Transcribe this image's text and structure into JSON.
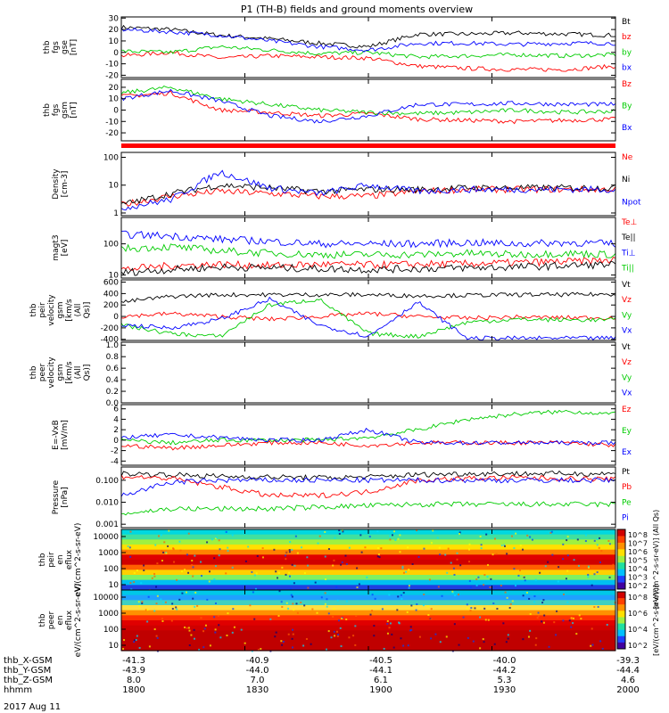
{
  "title": "P1 (TH-B) fields and ground moments overview",
  "date": "2017 Aug 11",
  "orbit_rows": [
    {
      "label": "thb_X-GSM",
      "values": [
        "-41.3",
        "-40.9",
        "-40.5",
        "-40.0",
        "-39.3"
      ]
    },
    {
      "label": "thb_Y-GSM",
      "values": [
        "-43.9",
        "-44.0",
        "-44.1",
        "-44.2",
        "-44.4"
      ]
    },
    {
      "label": "thb_Z-GSM",
      "values": [
        "8.0",
        "7.0",
        "6.1",
        "5.3",
        "4.6"
      ]
    },
    {
      "label": "hhmm",
      "values": [
        "1800",
        "1830",
        "1900",
        "1930",
        "2000"
      ]
    }
  ],
  "colorbar": {
    "label_top": "[eV/(cm^2-s-sr-eV)] (All Qs)",
    "label_bottom": "[eV/(cm^2-s-sr-eV)]",
    "ticks_top": [
      "10^8",
      "10^7",
      "10^6",
      "10^5",
      "10^4",
      "10^3",
      "10^2"
    ],
    "ticks_bottom": [
      "10^8",
      "10^6",
      "10^4",
      "10^2"
    ]
  },
  "colors": {
    "black": "#000000",
    "red": "#ff0000",
    "green": "#00cc00",
    "blue": "#0000ff"
  },
  "chart_data": [
    {
      "type": "line",
      "panel": "fgs-gse",
      "ylabel": "thb fgs gse [nT]",
      "yticks": [
        "30",
        "20",
        "10",
        "0",
        "-10",
        "-20"
      ],
      "ylim": [
        -22,
        31
      ],
      "legend": [
        "Bt",
        "bz",
        "by",
        "bx"
      ],
      "series": [
        {
          "name": "Bt",
          "color": "black",
          "x": [
            0,
            0.1,
            0.2,
            0.3,
            0.4,
            0.5,
            0.6,
            0.7,
            0.8,
            0.9,
            1
          ],
          "values": [
            22,
            20,
            15,
            12,
            8,
            5,
            16,
            16,
            17,
            16,
            15
          ]
        },
        {
          "name": "bz",
          "color": "red",
          "x": [
            0,
            0.1,
            0.2,
            0.3,
            0.4,
            0.5,
            0.6,
            0.7,
            0.8,
            0.9,
            1
          ],
          "values": [
            -3,
            0,
            -5,
            -3,
            -4,
            -5,
            -12,
            -14,
            -15,
            -15,
            -12
          ]
        },
        {
          "name": "by",
          "color": "green",
          "x": [
            0,
            0.1,
            0.2,
            0.3,
            0.4,
            0.5,
            0.6,
            0.7,
            0.8,
            0.9,
            1
          ],
          "values": [
            1,
            0,
            5,
            2,
            -1,
            0,
            -4,
            -3,
            -2,
            -3,
            -2
          ]
        },
        {
          "name": "bx",
          "color": "blue",
          "x": [
            0,
            0.1,
            0.2,
            0.3,
            0.4,
            0.5,
            0.6,
            0.7,
            0.8,
            0.9,
            1
          ],
          "values": [
            20,
            18,
            15,
            10,
            5,
            2,
            8,
            8,
            7,
            8,
            8
          ]
        }
      ]
    },
    {
      "type": "line",
      "panel": "fgs-gsm",
      "ylabel": "thb fgs gsm [nT]",
      "yticks": [
        "20",
        "10",
        "0",
        "-10",
        "-20"
      ],
      "ylim": [
        -27,
        27
      ],
      "legend": [
        "Bz",
        "By",
        "Bx"
      ],
      "series": [
        {
          "name": "Bz",
          "color": "red",
          "x": [
            0,
            0.1,
            0.2,
            0.3,
            0.4,
            0.5,
            0.6,
            0.7,
            0.8,
            0.9,
            1
          ],
          "values": [
            12,
            15,
            0,
            -2,
            -5,
            -3,
            -8,
            -9,
            -10,
            -9,
            -8
          ]
        },
        {
          "name": "By",
          "color": "green",
          "x": [
            0,
            0.1,
            0.2,
            0.3,
            0.4,
            0.5,
            0.6,
            0.7,
            0.8,
            0.9,
            1
          ],
          "values": [
            15,
            20,
            10,
            5,
            0,
            -2,
            -3,
            -2,
            0,
            -2,
            -1
          ]
        },
        {
          "name": "Bx",
          "color": "blue",
          "x": [
            0,
            0.1,
            0.2,
            0.3,
            0.4,
            0.5,
            0.6,
            0.7,
            0.8,
            0.9,
            1
          ],
          "values": [
            10,
            17,
            8,
            -5,
            -10,
            -5,
            5,
            5,
            6,
            5,
            5
          ]
        }
      ]
    },
    {
      "type": "line",
      "panel": "density",
      "ylabel": "Density [cm-3]",
      "scale": "log",
      "yticks": [
        "100",
        "10",
        "1"
      ],
      "ylim": [
        0.8,
        150
      ],
      "legend": [
        "Ne",
        "Ni",
        "Npot"
      ],
      "series": [
        {
          "name": "Ne",
          "color": "red",
          "x": [
            0,
            0.1,
            0.2,
            0.3,
            0.4,
            0.5,
            0.6,
            0.7,
            0.8,
            0.9,
            1
          ],
          "values": [
            2,
            4,
            6,
            5,
            4,
            4,
            6,
            7,
            7,
            7,
            7
          ]
        },
        {
          "name": "Ni",
          "color": "black",
          "x": [
            0,
            0.1,
            0.2,
            0.3,
            0.4,
            0.5,
            0.6,
            0.7,
            0.8,
            0.9,
            1
          ],
          "values": [
            2,
            5,
            10,
            8,
            6,
            7,
            7,
            8,
            8,
            8,
            8
          ]
        },
        {
          "name": "Npot",
          "color": "blue",
          "x": [
            0,
            0.1,
            0.2,
            0.3,
            0.4,
            0.5,
            0.6,
            0.7,
            0.8,
            0.9,
            1
          ],
          "values": [
            1.5,
            3,
            30,
            8,
            5,
            10,
            6,
            7,
            7,
            7,
            7
          ]
        }
      ]
    },
    {
      "type": "line",
      "panel": "temperature",
      "ylabel": "magt3 [eV]",
      "scale": "log",
      "yticks": [
        "100",
        "10"
      ],
      "ylim": [
        8,
        700
      ],
      "legend": [
        "Te⊥",
        "Te||",
        "Ti⊥",
        "Ti||"
      ],
      "series": [
        {
          "name": "Te⊥",
          "color": "red",
          "x": [
            0,
            0.1,
            0.2,
            0.3,
            0.4,
            0.5,
            0.6,
            0.7,
            0.8,
            0.9,
            1
          ],
          "values": [
            15,
            20,
            22,
            20,
            22,
            21,
            22,
            23,
            25,
            27,
            30
          ]
        },
        {
          "name": "Te||",
          "color": "black",
          "x": [
            0,
            0.1,
            0.2,
            0.3,
            0.4,
            0.5,
            0.6,
            0.7,
            0.8,
            0.9,
            1
          ],
          "values": [
            12,
            15,
            18,
            17,
            16,
            15,
            16,
            17,
            18,
            20,
            22
          ]
        },
        {
          "name": "Ti⊥",
          "color": "blue",
          "x": [
            0,
            0.1,
            0.2,
            0.3,
            0.4,
            0.5,
            0.6,
            0.7,
            0.8,
            0.9,
            1
          ],
          "values": [
            200,
            180,
            140,
            120,
            100,
            100,
            100,
            110,
            100,
            110,
            100
          ]
        },
        {
          "name": "Ti||",
          "color": "green",
          "x": [
            0,
            0.1,
            0.2,
            0.3,
            0.4,
            0.5,
            0.6,
            0.7,
            0.8,
            0.9,
            1
          ],
          "values": [
            70,
            80,
            60,
            50,
            45,
            45,
            45,
            50,
            45,
            50,
            45
          ]
        }
      ]
    },
    {
      "type": "line",
      "panel": "peir-velocity",
      "ylabel": "thb peir velocity gsm [km/s (All Qs)]",
      "yticks": [
        "600",
        "400",
        "200",
        "0",
        "-200",
        "-400"
      ],
      "ylim": [
        -420,
        640
      ],
      "legend": [
        "Vt",
        "Vz",
        "Vy",
        "Vx"
      ],
      "series": [
        {
          "name": "Vt",
          "color": "black",
          "x": [
            0,
            0.1,
            0.2,
            0.3,
            0.4,
            0.5,
            0.6,
            0.7,
            0.8,
            0.9,
            1
          ],
          "values": [
            250,
            350,
            380,
            380,
            380,
            380,
            360,
            370,
            380,
            380,
            390
          ]
        },
        {
          "name": "Vz",
          "color": "red",
          "x": [
            0,
            0.1,
            0.2,
            0.3,
            0.4,
            0.5,
            0.6,
            0.7,
            0.8,
            0.9,
            1
          ],
          "values": [
            0,
            50,
            0,
            -50,
            0,
            50,
            0,
            -30,
            -10,
            -20,
            -20
          ]
        },
        {
          "name": "Vy",
          "color": "green",
          "x": [
            0,
            0.1,
            0.2,
            0.3,
            0.4,
            0.5,
            0.6,
            0.7,
            0.8,
            0.9,
            1
          ],
          "values": [
            -150,
            -300,
            -350,
            200,
            300,
            -300,
            -350,
            -100,
            -50,
            -60,
            -60
          ]
        },
        {
          "name": "Vx",
          "color": "blue",
          "x": [
            0,
            0.1,
            0.2,
            0.3,
            0.4,
            0.5,
            0.6,
            0.7,
            0.8,
            0.9,
            1
          ],
          "values": [
            -150,
            -200,
            -50,
            300,
            -150,
            -350,
            250,
            -380,
            -380,
            -380,
            -380
          ]
        }
      ]
    },
    {
      "type": "line",
      "panel": "peer-velocity",
      "ylabel": "thb peer velocity gsm [km/s (All Qs)]",
      "yticks": [
        "1.0",
        "0.8",
        "0.6",
        "0.4",
        "0.2",
        "0.0"
      ],
      "ylim": [
        0,
        1.05
      ],
      "legend": [
        "Vt",
        "Vz",
        "Vy",
        "Vx"
      ],
      "series": []
    },
    {
      "type": "line",
      "panel": "efield",
      "ylabel": "E=-VxB [mV/m]",
      "yticks": [
        "6",
        "4",
        "2",
        "0",
        "-2",
        "-4"
      ],
      "ylim": [
        -4.8,
        6.8
      ],
      "legend": [
        "Ez",
        "Ey",
        "Ex"
      ],
      "series": [
        {
          "name": "Ez",
          "color": "red",
          "x": [
            0,
            0.1,
            0.2,
            0.3,
            0.4,
            0.5,
            0.6,
            0.7,
            0.8,
            0.9,
            1
          ],
          "values": [
            -1,
            -1.5,
            -1,
            -0.5,
            -0.5,
            -1,
            -0.5,
            -0.5,
            -0.5,
            -0.5,
            -1
          ]
        },
        {
          "name": "Ey",
          "color": "green",
          "x": [
            0,
            0.1,
            0.2,
            0.3,
            0.4,
            0.5,
            0.6,
            0.7,
            0.8,
            0.9,
            1
          ],
          "values": [
            0,
            -0.5,
            0,
            0,
            0,
            0.5,
            2,
            4,
            5,
            5.5,
            5
          ]
        },
        {
          "name": "Ex",
          "color": "blue",
          "x": [
            0,
            0.1,
            0.2,
            0.3,
            0.4,
            0.5,
            0.6,
            0.7,
            0.8,
            0.9,
            1
          ],
          "values": [
            0.5,
            1,
            0.5,
            0,
            0,
            2,
            -0.5,
            -0.5,
            -0.5,
            -0.5,
            -0.5
          ]
        }
      ]
    },
    {
      "type": "line",
      "panel": "pressure",
      "ylabel": "Pressure [nPa]",
      "scale": "log",
      "yticks": [
        "0.100",
        "0.010",
        "0.001"
      ],
      "ylim": [
        0.0007,
        0.4
      ],
      "legend": [
        "Pt",
        "Pb",
        "Pe",
        "Pi"
      ],
      "series": [
        {
          "name": "Pt",
          "color": "black",
          "x": [
            0,
            0.1,
            0.2,
            0.3,
            0.4,
            0.5,
            0.6,
            0.7,
            0.8,
            0.9,
            1
          ],
          "values": [
            0.2,
            0.18,
            0.15,
            0.14,
            0.13,
            0.14,
            0.18,
            0.2,
            0.2,
            0.2,
            0.2
          ]
        },
        {
          "name": "Pb",
          "color": "red",
          "x": [
            0,
            0.1,
            0.2,
            0.3,
            0.4,
            0.5,
            0.6,
            0.7,
            0.8,
            0.9,
            1
          ],
          "values": [
            0.15,
            0.12,
            0.05,
            0.02,
            0.02,
            0.03,
            0.1,
            0.12,
            0.13,
            0.12,
            0.11
          ]
        },
        {
          "name": "Pe",
          "color": "green",
          "x": [
            0,
            0.1,
            0.2,
            0.3,
            0.4,
            0.5,
            0.6,
            0.7,
            0.8,
            0.9,
            1
          ],
          "values": [
            0.003,
            0.005,
            0.005,
            0.005,
            0.006,
            0.007,
            0.008,
            0.008,
            0.008,
            0.008,
            0.008
          ]
        },
        {
          "name": "Pi",
          "color": "blue",
          "x": [
            0,
            0.1,
            0.2,
            0.3,
            0.4,
            0.5,
            0.6,
            0.7,
            0.8,
            0.9,
            1
          ],
          "values": [
            0.02,
            0.08,
            0.1,
            0.1,
            0.1,
            0.1,
            0.1,
            0.1,
            0.1,
            0.1,
            0.1
          ]
        }
      ]
    },
    {
      "type": "heatmap",
      "panel": "peir-eflux",
      "ylabel": "thb peir en eflux eV/(cm^2-s-sr-eV)",
      "yticks": [
        "10000",
        "1000",
        "100",
        "10"
      ],
      "scale": "log"
    },
    {
      "type": "heatmap",
      "panel": "peer-eflux",
      "ylabel": "thb peer en eflux eV/(cm^2-s-sr-eV)",
      "yticks": [
        "10000",
        "1000",
        "100",
        "10"
      ],
      "scale": "log"
    }
  ]
}
